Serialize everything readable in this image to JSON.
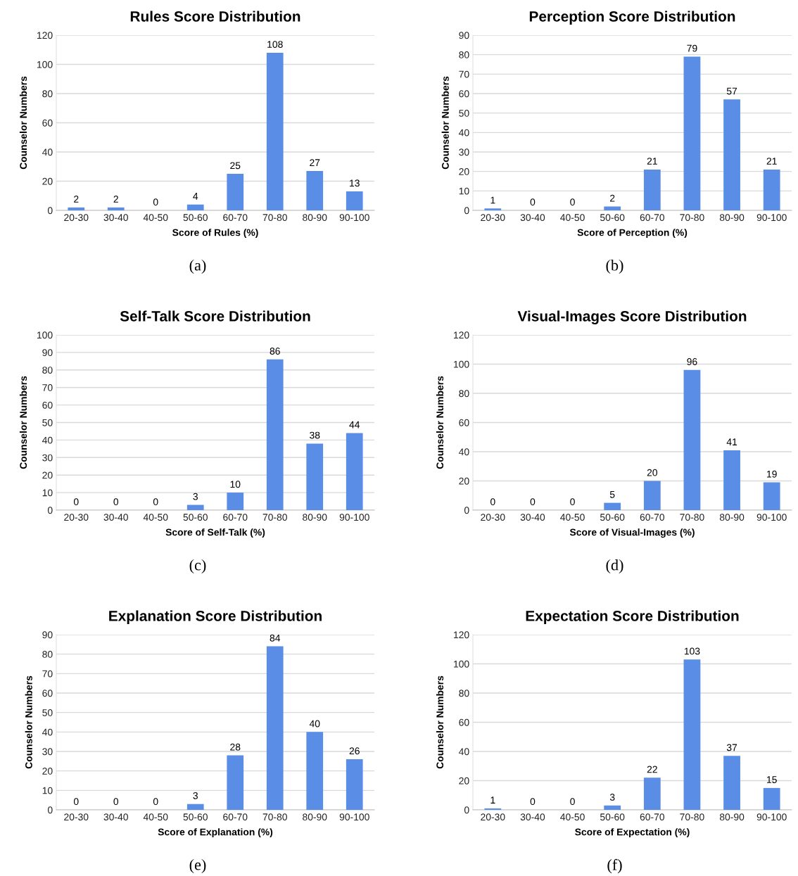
{
  "chart_data": [
    {
      "type": "bar",
      "title": "Rules Score Distribution",
      "xlabel": "Score of Rules (%)",
      "ylabel": "Counselor Numbers",
      "categories": [
        "20-30",
        "30-40",
        "40-50",
        "50-60",
        "60-70",
        "70-80",
        "80-90",
        "90-100"
      ],
      "values": [
        2,
        2,
        0,
        4,
        25,
        108,
        27,
        13
      ],
      "color": "#5a8ee6",
      "ylim": [
        0,
        120
      ],
      "yticks": [
        0,
        20,
        40,
        60,
        80,
        100,
        120
      ],
      "grid": "y",
      "data_labels": true,
      "annotations": [
        "(a)"
      ]
    },
    {
      "type": "bar",
      "title": "Perception Score Distribution",
      "xlabel": "Score of Perception (%)",
      "ylabel": "Counselor Numbers",
      "categories": [
        "20-30",
        "30-40",
        "40-50",
        "50-60",
        "60-70",
        "70-80",
        "80-90",
        "90-100"
      ],
      "values": [
        1,
        0,
        0,
        2,
        21,
        79,
        57,
        21
      ],
      "color": "#5a8ee6",
      "ylim": [
        0,
        90
      ],
      "yticks": [
        0,
        10,
        20,
        30,
        40,
        50,
        60,
        70,
        80,
        90
      ],
      "grid": "y",
      "data_labels": true,
      "annotations": [
        "(b)"
      ]
    },
    {
      "type": "bar",
      "title": "Self-Talk Score Distribution",
      "xlabel": "Score of Self-Talk (%)",
      "ylabel": "Counselor Numbers",
      "categories": [
        "20-30",
        "30-40",
        "40-50",
        "50-60",
        "60-70",
        "70-80",
        "80-90",
        "90-100"
      ],
      "values": [
        0,
        0,
        0,
        3,
        10,
        86,
        38,
        44
      ],
      "color": "#5a8ee6",
      "ylim": [
        0,
        100
      ],
      "yticks": [
        0,
        10,
        20,
        30,
        40,
        50,
        60,
        70,
        80,
        90,
        100
      ],
      "grid": "y",
      "data_labels": true,
      "annotations": [
        "(c)"
      ]
    },
    {
      "type": "bar",
      "title": "Visual-Images Score Distribution",
      "xlabel": "Score of Visual-Images (%)",
      "ylabel": "Counselor Numbers",
      "categories": [
        "20-30",
        "30-40",
        "40-50",
        "50-60",
        "60-70",
        "70-80",
        "80-90",
        "90-100"
      ],
      "values": [
        0,
        0,
        0,
        5,
        20,
        96,
        41,
        19
      ],
      "color": "#5a8ee6",
      "ylim": [
        0,
        120
      ],
      "yticks": [
        0,
        20,
        40,
        60,
        80,
        100,
        120
      ],
      "grid": "y",
      "data_labels": true,
      "annotations": [
        "(d)"
      ]
    },
    {
      "type": "bar",
      "title": "Explanation Score Distribution",
      "xlabel": "Score of Explanation (%)",
      "ylabel": "Counselor Numbers",
      "categories": [
        "20-30",
        "30-40",
        "40-50",
        "50-60",
        "60-70",
        "70-80",
        "80-90",
        "90-100"
      ],
      "values": [
        0,
        0,
        0,
        3,
        28,
        84,
        40,
        26
      ],
      "color": "#5a8ee6",
      "ylim": [
        0,
        90
      ],
      "yticks": [
        0,
        10,
        20,
        30,
        40,
        50,
        60,
        70,
        80,
        90
      ],
      "grid": "y",
      "data_labels": true,
      "annotations": [
        "(e)"
      ]
    },
    {
      "type": "bar",
      "title": "Expectation Score Distribution",
      "xlabel": "Score of Expectation (%)",
      "ylabel": "Counselor Numbers",
      "categories": [
        "20-30",
        "30-40",
        "40-50",
        "50-60",
        "60-70",
        "70-80",
        "80-90",
        "90-100"
      ],
      "values": [
        1,
        0,
        0,
        3,
        22,
        103,
        37,
        15
      ],
      "color": "#5a8ee6",
      "ylim": [
        0,
        120
      ],
      "yticks": [
        0,
        20,
        40,
        60,
        80,
        100,
        120
      ],
      "grid": "y",
      "data_labels": true,
      "annotations": [
        "(f)"
      ]
    }
  ]
}
